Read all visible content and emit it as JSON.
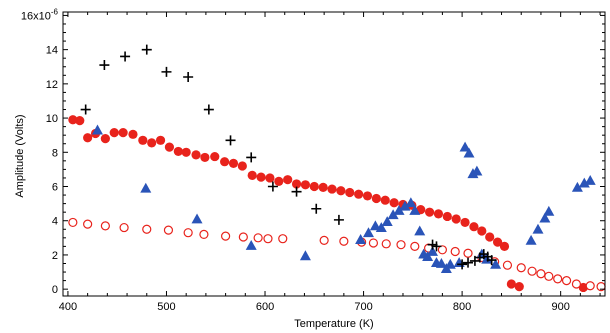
{
  "chart_data": {
    "type": "scatter",
    "title": "",
    "xlabel": "Temperature (K)",
    "ylabel": "Amplitude (Volts)",
    "y_multiplier_label": "16x10-6",
    "xlim": [
      395,
      945
    ],
    "ylim": [
      -0.4,
      16.2
    ],
    "x_ticks": [
      400,
      500,
      600,
      700,
      800,
      900
    ],
    "y_ticks": [
      0,
      2,
      4,
      6,
      8,
      10,
      12,
      14
    ],
    "grid": false,
    "legend": "none",
    "colors": {
      "red": "#e8231c",
      "blue": "#2a54b8",
      "black": "#000000"
    },
    "series": [
      {
        "marker": "filled-circle",
        "color": "#e8231c",
        "points": [
          [
            405,
            9.9
          ],
          [
            412,
            9.85
          ],
          [
            420,
            8.85
          ],
          [
            428,
            9.1
          ],
          [
            438,
            8.8
          ],
          [
            447,
            9.15
          ],
          [
            456,
            9.15
          ],
          [
            466,
            9.05
          ],
          [
            476,
            8.7
          ],
          [
            485,
            8.55
          ],
          [
            494,
            8.7
          ],
          [
            503,
            8.3
          ],
          [
            512,
            8.05
          ],
          [
            520,
            8.0
          ],
          [
            530,
            7.85
          ],
          [
            539,
            7.7
          ],
          [
            549,
            7.75
          ],
          [
            559,
            7.45
          ],
          [
            568,
            7.35
          ],
          [
            577,
            7.2
          ],
          [
            587,
            6.65
          ],
          [
            596,
            6.55
          ],
          [
            605,
            6.5
          ],
          [
            614,
            6.3
          ],
          [
            623,
            6.4
          ],
          [
            632,
            6.15
          ],
          [
            641,
            6.1
          ],
          [
            650,
            6.0
          ],
          [
            659,
            5.95
          ],
          [
            668,
            5.85
          ],
          [
            677,
            5.75
          ],
          [
            686,
            5.65
          ],
          [
            695,
            5.55
          ],
          [
            704,
            5.45
          ],
          [
            713,
            5.3
          ],
          [
            722,
            5.2
          ],
          [
            731,
            5.05
          ],
          [
            740,
            4.95
          ],
          [
            749,
            4.9
          ],
          [
            758,
            4.65
          ],
          [
            767,
            4.5
          ],
          [
            776,
            4.4
          ],
          [
            785,
            4.25
          ],
          [
            794,
            4.1
          ],
          [
            803,
            3.9
          ],
          [
            812,
            3.65
          ],
          [
            820,
            3.4
          ],
          [
            828,
            3.05
          ],
          [
            836,
            2.75
          ],
          [
            843,
            2.5
          ],
          [
            850,
            0.3
          ],
          [
            858,
            0.15
          ],
          [
            923,
            0.1
          ]
        ]
      },
      {
        "marker": "open-circle",
        "color": "#e8231c",
        "points": [
          [
            405,
            3.9
          ],
          [
            420,
            3.8
          ],
          [
            438,
            3.7
          ],
          [
            457,
            3.6
          ],
          [
            480,
            3.5
          ],
          [
            502,
            3.45
          ],
          [
            522,
            3.3
          ],
          [
            538,
            3.2
          ],
          [
            560,
            3.1
          ],
          [
            578,
            3.05
          ],
          [
            593,
            3.0
          ],
          [
            603,
            2.95
          ],
          [
            618,
            2.95
          ],
          [
            660,
            2.85
          ],
          [
            680,
            2.8
          ],
          [
            698,
            2.75
          ],
          [
            710,
            2.7
          ],
          [
            723,
            2.65
          ],
          [
            738,
            2.6
          ],
          [
            752,
            2.5
          ],
          [
            766,
            2.4
          ],
          [
            780,
            2.3
          ],
          [
            793,
            2.2
          ],
          [
            806,
            2.1
          ],
          [
            820,
            1.85
          ],
          [
            833,
            1.6
          ],
          [
            846,
            1.4
          ],
          [
            860,
            1.25
          ],
          [
            871,
            1.05
          ],
          [
            880,
            0.9
          ],
          [
            888,
            0.75
          ],
          [
            897,
            0.6
          ],
          [
            906,
            0.5
          ],
          [
            916,
            0.3
          ],
          [
            930,
            0.2
          ],
          [
            941,
            0.15
          ]
        ]
      },
      {
        "marker": "filled-triangle",
        "color": "#2a54b8",
        "points": [
          [
            430,
            9.3
          ],
          [
            479,
            5.9
          ],
          [
            531,
            4.1
          ],
          [
            586,
            2.55
          ],
          [
            641,
            1.95
          ],
          [
            697,
            2.9
          ],
          [
            705,
            3.3
          ],
          [
            712,
            3.7
          ],
          [
            718,
            3.6
          ],
          [
            724,
            3.95
          ],
          [
            730,
            4.35
          ],
          [
            736,
            4.6
          ],
          [
            742,
            4.85
          ],
          [
            748,
            5.05
          ],
          [
            752,
            4.6
          ],
          [
            757,
            3.4
          ],
          [
            761,
            2.05
          ],
          [
            765,
            1.9
          ],
          [
            770,
            2.2
          ],
          [
            774,
            1.55
          ],
          [
            779,
            1.5
          ],
          [
            784,
            1.2
          ],
          [
            788,
            1.45
          ],
          [
            797,
            1.55
          ],
          [
            803,
            8.3
          ],
          [
            807,
            7.95
          ],
          [
            811,
            6.75
          ],
          [
            815,
            6.9
          ],
          [
            820,
            2.05
          ],
          [
            825,
            1.75
          ],
          [
            834,
            1.45
          ],
          [
            870,
            2.85
          ],
          [
            877,
            3.5
          ],
          [
            884,
            4.15
          ],
          [
            888,
            4.55
          ],
          [
            917,
            5.95
          ],
          [
            924,
            6.2
          ],
          [
            930,
            6.35
          ]
        ]
      },
      {
        "marker": "plus",
        "color": "#000000",
        "points": [
          [
            418,
            10.5
          ],
          [
            437,
            13.1
          ],
          [
            458,
            13.6
          ],
          [
            480,
            14.0
          ],
          [
            500,
            12.7
          ],
          [
            522,
            12.4
          ],
          [
            543,
            10.5
          ],
          [
            565,
            8.7
          ],
          [
            586,
            7.7
          ],
          [
            608,
            6.0
          ],
          [
            632,
            5.7
          ],
          [
            652,
            4.7
          ],
          [
            675,
            4.05
          ],
          [
            770,
            2.6
          ],
          [
            774,
            2.5
          ],
          [
            800,
            1.45
          ],
          [
            806,
            1.55
          ],
          [
            813,
            1.65
          ],
          [
            818,
            1.85
          ],
          [
            822,
            2.05
          ],
          [
            826,
            1.9
          ],
          [
            830,
            1.7
          ]
        ]
      }
    ]
  }
}
